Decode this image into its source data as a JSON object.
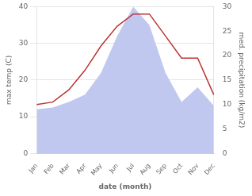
{
  "chart_data": {
    "type": "line",
    "categories": [
      "Jan",
      "Feb",
      "Mar",
      "Apr",
      "May",
      "Jun",
      "Jul",
      "Aug",
      "Sep",
      "Oct",
      "Nov",
      "Dec"
    ],
    "series": [
      {
        "type": "area",
        "color": "#c0c8f0",
        "values": [
          12.0,
          12.5,
          14.0,
          16.0,
          22.0,
          32.0,
          40.0,
          35.0,
          22.0,
          14.0,
          18.0,
          13.0
        ]
      },
      {
        "type": "line",
        "color": "#bb3333",
        "axis": "y2",
        "values": [
          10.0,
          10.5,
          13.0,
          17.0,
          22.0,
          26.0,
          28.5,
          28.5,
          24.0,
          19.5,
          19.5,
          12.0
        ]
      }
    ],
    "xlabel": "date (month)",
    "ylabel": "max temp (C)",
    "y2label": "med. precipitation (kg/m2)",
    "ylim": [
      0,
      40
    ],
    "yticks": [
      0,
      10,
      20,
      30,
      40
    ],
    "y2lim": [
      0,
      30
    ],
    "y2ticks": [
      0,
      5,
      10,
      15,
      20,
      25,
      30
    ],
    "grid": true
  }
}
